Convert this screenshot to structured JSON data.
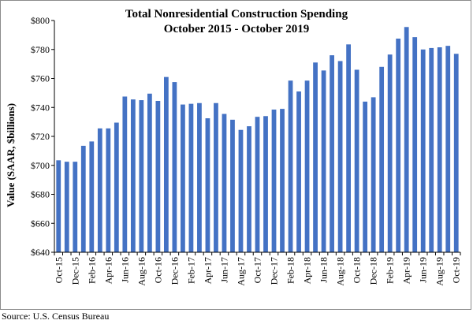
{
  "chart_data": {
    "type": "bar",
    "title": "Total Nonresidential Construction Spending",
    "subtitle": "October 2015 - October 2019",
    "ylabel": "Value (SAAR, $billions)",
    "xlabel": "",
    "ylim": [
      640,
      800
    ],
    "yticks": [
      "$640",
      "$660",
      "$680",
      "$700",
      "$720",
      "$740",
      "$760",
      "$780",
      "$800"
    ],
    "ytick_values": [
      640,
      660,
      680,
      700,
      720,
      740,
      760,
      780,
      800
    ],
    "xtick_labels": [
      "Oct-15",
      "Dec-15",
      "Feb-16",
      "Apr-16",
      "Jun-16",
      "Aug-16",
      "Oct-16",
      "Dec-16",
      "Feb-17",
      "Apr-17",
      "Jun-17",
      "Aug-17",
      "Oct-17",
      "Dec-17",
      "Feb-18",
      "Apr-18",
      "Jun-18",
      "Aug-18",
      "Oct-18",
      "Dec-18",
      "Feb-19",
      "Apr-19",
      "Jun-19",
      "Aug-19",
      "Oct-19"
    ],
    "categories": [
      "Oct-15",
      "Nov-15",
      "Dec-15",
      "Jan-16",
      "Feb-16",
      "Mar-16",
      "Apr-16",
      "May-16",
      "Jun-16",
      "Jul-16",
      "Aug-16",
      "Sep-16",
      "Oct-16",
      "Nov-16",
      "Dec-16",
      "Jan-17",
      "Feb-17",
      "Mar-17",
      "Apr-17",
      "May-17",
      "Jun-17",
      "Jul-17",
      "Aug-17",
      "Sep-17",
      "Oct-17",
      "Nov-17",
      "Dec-17",
      "Jan-18",
      "Feb-18",
      "Mar-18",
      "Apr-18",
      "May-18",
      "Jun-18",
      "Jul-18",
      "Aug-18",
      "Sep-18",
      "Oct-18",
      "Nov-18",
      "Dec-18",
      "Jan-19",
      "Feb-19",
      "Mar-19",
      "Apr-19",
      "May-19",
      "Jun-19",
      "Jul-19",
      "Aug-19",
      "Sep-19",
      "Oct-19"
    ],
    "values": [
      703.5,
      702.5,
      702.5,
      713.5,
      716.5,
      725.5,
      725.5,
      729.5,
      747.5,
      745.5,
      745.0,
      749.5,
      744.5,
      761.0,
      757.5,
      742.0,
      742.5,
      743.0,
      732.5,
      743.0,
      735.5,
      731.5,
      724.5,
      727.0,
      733.5,
      734.0,
      738.5,
      739.0,
      758.5,
      751.0,
      758.5,
      771.0,
      765.5,
      776.0,
      772.0,
      783.5,
      766.0,
      744.0,
      747.0,
      768.0,
      776.5,
      787.5,
      795.5,
      788.5,
      780.0,
      781.0,
      781.5,
      782.5,
      777.0
    ],
    "bar_color": "#4472C4",
    "grid": false,
    "legend": "none"
  },
  "source": "Source:  U.S. Census Bureau"
}
